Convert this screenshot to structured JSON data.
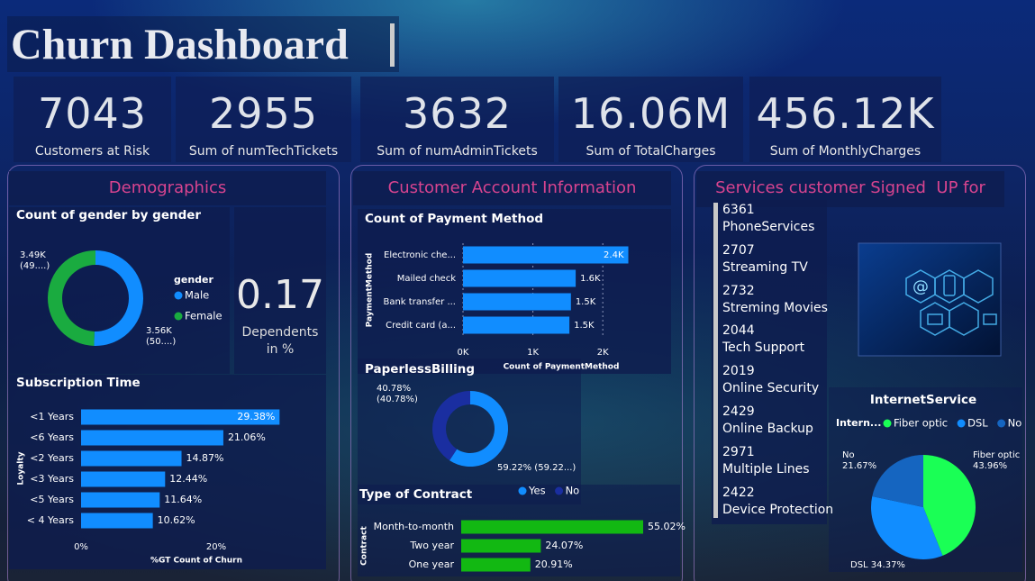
{
  "title": "Churn Dashboard",
  "kpis": [
    {
      "value": "7043",
      "label": "Customers at Risk"
    },
    {
      "value": "2955",
      "label": "Sum of numTechTickets"
    },
    {
      "value": "3632",
      "label": "Sum of numAdminTickets"
    },
    {
      "value": "16.06M",
      "label": "Sum of TotalCharges"
    },
    {
      "value": "456.12K",
      "label": "Sum of MonthlyCharges"
    }
  ],
  "sections": [
    "Demographics",
    "Customer Account Information",
    "Services customer Signed  UP for"
  ],
  "dependents": {
    "value": "0.17",
    "label": "Dependents\nin %"
  },
  "services": [
    {
      "value": "6361",
      "label": "PhoneServices"
    },
    {
      "value": "2707",
      "label": "Streaming TV"
    },
    {
      "value": "2732",
      "label": "Streming Movies"
    },
    {
      "value": "2044",
      "label": "Tech Support"
    },
    {
      "value": "2019",
      "label": "Online Security"
    },
    {
      "value": "2429",
      "label": "Online Backup"
    },
    {
      "value": "2971",
      "label": "Multiple Lines"
    },
    {
      "value": "2422",
      "label": "Device Protection"
    }
  ],
  "chart_data": [
    {
      "type": "donut",
      "title": "Count of gender by gender",
      "legend_title": "gender",
      "categories": [
        "Male",
        "Female"
      ],
      "values": [
        3560,
        3490
      ],
      "value_labels": [
        "3.56K\n(50....)",
        "3.49K\n(49....)"
      ],
      "colors": [
        "#118dff",
        "#1aab40"
      ]
    },
    {
      "type": "hbar",
      "title": "Subscription Time",
      "y_label": "Loyalty",
      "x_label": "%GT Count of Churn",
      "categories": [
        "<1 Years",
        "<6 Years",
        "<2 Years",
        "<3 Years",
        "<5 Years",
        "< 4 Years"
      ],
      "values": [
        29.38,
        21.06,
        14.87,
        12.44,
        11.64,
        10.62
      ],
      "value_labels": [
        "29.38%",
        "21.06%",
        "14.87%",
        "12.44%",
        "11.64%",
        "10.62%"
      ],
      "color": "#118dff",
      "xlim": [
        0,
        30
      ],
      "xticks": [
        {
          "value": 0,
          "label": "0%"
        },
        {
          "value": 20,
          "label": "20%"
        }
      ],
      "grid": false
    },
    {
      "type": "hbar",
      "title": "Count of Payment Method",
      "y_label": "PaymentMethod",
      "x_label": "Count of PaymentMethod",
      "categories": [
        "Electronic che...",
        "Mailed check",
        "Bank transfer ...",
        "Credit card (a..."
      ],
      "values": [
        2365,
        1612,
        1544,
        1522
      ],
      "value_labels": [
        "2.4K",
        "1.6K",
        "1.5K",
        "1.5K"
      ],
      "color": "#118dff",
      "xlim": [
        0,
        2500
      ],
      "xticks": [
        {
          "value": 0,
          "label": "0K"
        },
        {
          "value": 1000,
          "label": "1K"
        },
        {
          "value": 2000,
          "label": "2K"
        }
      ],
      "grid": true
    },
    {
      "type": "donut",
      "title": "PaperlessBilling",
      "categories": [
        "Yes",
        "No"
      ],
      "values": [
        59.22,
        40.78
      ],
      "value_labels": [
        "59.22% (59.22...)",
        "40.78%\n(40.78%)"
      ],
      "colors": [
        "#118dff",
        "#1a2ea0"
      ]
    },
    {
      "type": "hbar",
      "title": "Type of Contract",
      "y_label": "Contract",
      "categories": [
        "Month-to-month",
        "Two year",
        "One year"
      ],
      "values": [
        55.02,
        24.07,
        20.91
      ],
      "value_labels": [
        "55.02%",
        "24.07%",
        "20.91%"
      ],
      "color": "#12b812"
    },
    {
      "type": "pie",
      "title": "InternetService",
      "legend_title": "Intern...",
      "categories": [
        "Fiber optic",
        "DSL",
        "No"
      ],
      "values": [
        43.96,
        34.37,
        21.67
      ],
      "value_labels": [
        "Fiber optic\n43.96%",
        "DSL 34.37%",
        "No\n21.67%"
      ],
      "colors": [
        "#1aff55",
        "#118dff",
        "#1565c0"
      ]
    }
  ]
}
